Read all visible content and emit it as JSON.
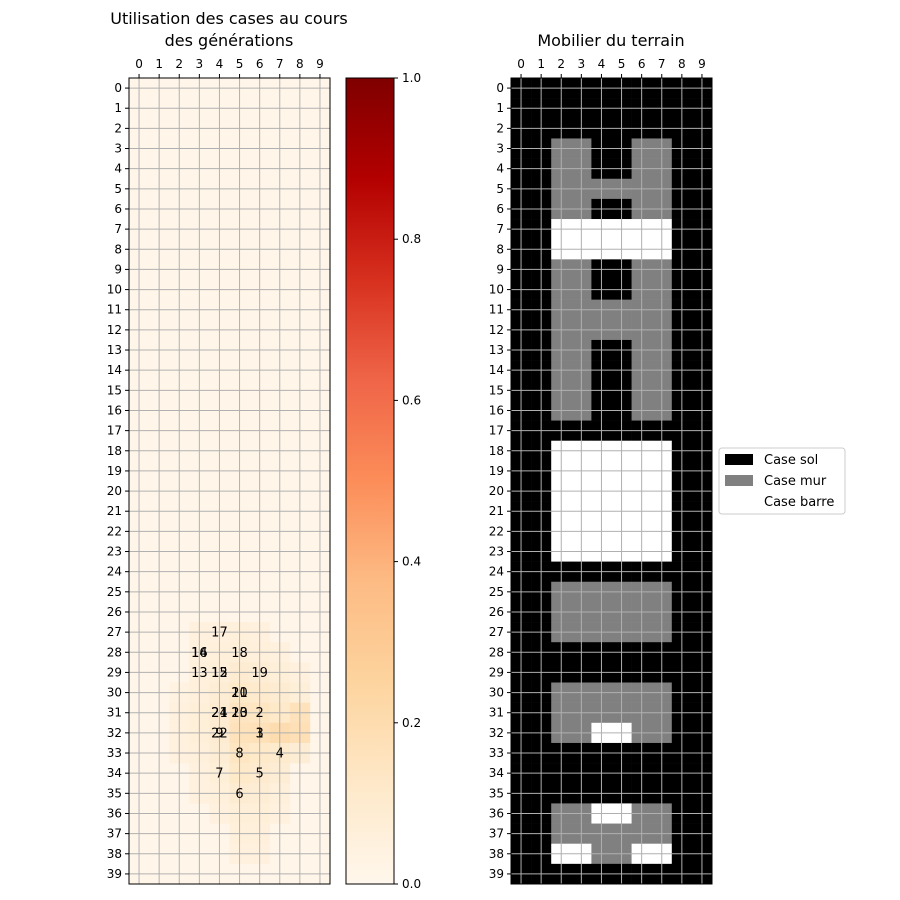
{
  "heatmap": {
    "title_line1": "Utilisation des cases au cours",
    "title_line2": "des générations",
    "cols": 10,
    "rows": 40,
    "x_ticks": [
      "0",
      "1",
      "2",
      "3",
      "4",
      "5",
      "6",
      "7",
      "8",
      "9"
    ],
    "colormap": "OrRd",
    "vmin": 0.0,
    "vmax": 1.0,
    "colorbar_ticks": [
      "0.0",
      "0.2",
      "0.4",
      "0.6",
      "0.8",
      "1.0"
    ],
    "cells": [
      {
        "row": 27,
        "col": 3,
        "v": 0.05
      },
      {
        "row": 27,
        "col": 4,
        "v": 0.05
      },
      {
        "row": 27,
        "col": 5,
        "v": 0.06
      },
      {
        "row": 27,
        "col": 6,
        "v": 0.05
      },
      {
        "row": 28,
        "col": 3,
        "v": 0.05
      },
      {
        "row": 28,
        "col": 4,
        "v": 0.06
      },
      {
        "row": 28,
        "col": 5,
        "v": 0.07
      },
      {
        "row": 28,
        "col": 6,
        "v": 0.06
      },
      {
        "row": 28,
        "col": 7,
        "v": 0.05
      },
      {
        "row": 29,
        "col": 3,
        "v": 0.06
      },
      {
        "row": 29,
        "col": 4,
        "v": 0.07
      },
      {
        "row": 29,
        "col": 5,
        "v": 0.09
      },
      {
        "row": 29,
        "col": 6,
        "v": 0.08
      },
      {
        "row": 29,
        "col": 7,
        "v": 0.07
      },
      {
        "row": 29,
        "col": 8,
        "v": 0.05
      },
      {
        "row": 30,
        "col": 2,
        "v": 0.04
      },
      {
        "row": 30,
        "col": 3,
        "v": 0.06
      },
      {
        "row": 30,
        "col": 4,
        "v": 0.08
      },
      {
        "row": 30,
        "col": 5,
        "v": 0.12
      },
      {
        "row": 30,
        "col": 6,
        "v": 0.11
      },
      {
        "row": 30,
        "col": 7,
        "v": 0.09
      },
      {
        "row": 30,
        "col": 8,
        "v": 0.07
      },
      {
        "row": 31,
        "col": 2,
        "v": 0.05
      },
      {
        "row": 31,
        "col": 3,
        "v": 0.07
      },
      {
        "row": 31,
        "col": 4,
        "v": 0.09
      },
      {
        "row": 31,
        "col": 5,
        "v": 0.15
      },
      {
        "row": 31,
        "col": 6,
        "v": 0.14
      },
      {
        "row": 31,
        "col": 7,
        "v": 0.12
      },
      {
        "row": 31,
        "col": 8,
        "v": 0.16
      },
      {
        "row": 32,
        "col": 2,
        "v": 0.05
      },
      {
        "row": 32,
        "col": 3,
        "v": 0.07
      },
      {
        "row": 32,
        "col": 4,
        "v": 0.09
      },
      {
        "row": 32,
        "col": 5,
        "v": 0.16
      },
      {
        "row": 32,
        "col": 6,
        "v": 0.17
      },
      {
        "row": 32,
        "col": 7,
        "v": 0.2
      },
      {
        "row": 32,
        "col": 8,
        "v": 0.18
      },
      {
        "row": 33,
        "col": 2,
        "v": 0.05
      },
      {
        "row": 33,
        "col": 3,
        "v": 0.06
      },
      {
        "row": 33,
        "col": 4,
        "v": 0.08
      },
      {
        "row": 33,
        "col": 5,
        "v": 0.14
      },
      {
        "row": 33,
        "col": 6,
        "v": 0.12
      },
      {
        "row": 33,
        "col": 7,
        "v": 0.11
      },
      {
        "row": 33,
        "col": 8,
        "v": 0.08
      },
      {
        "row": 34,
        "col": 3,
        "v": 0.05
      },
      {
        "row": 34,
        "col": 4,
        "v": 0.07
      },
      {
        "row": 34,
        "col": 5,
        "v": 0.12
      },
      {
        "row": 34,
        "col": 6,
        "v": 0.1
      },
      {
        "row": 34,
        "col": 7,
        "v": 0.08
      },
      {
        "row": 35,
        "col": 3,
        "v": 0.05
      },
      {
        "row": 35,
        "col": 4,
        "v": 0.06
      },
      {
        "row": 35,
        "col": 5,
        "v": 0.09
      },
      {
        "row": 35,
        "col": 6,
        "v": 0.08
      },
      {
        "row": 35,
        "col": 7,
        "v": 0.06
      },
      {
        "row": 36,
        "col": 4,
        "v": 0.05
      },
      {
        "row": 36,
        "col": 5,
        "v": 0.07
      },
      {
        "row": 36,
        "col": 6,
        "v": 0.07
      },
      {
        "row": 36,
        "col": 7,
        "v": 0.05
      },
      {
        "row": 37,
        "col": 5,
        "v": 0.06
      },
      {
        "row": 37,
        "col": 6,
        "v": 0.06
      },
      {
        "row": 38,
        "col": 5,
        "v": 0.05
      },
      {
        "row": 38,
        "col": 6,
        "v": 0.05
      }
    ],
    "labels": [
      {
        "text": "17",
        "row": 27,
        "col": 4
      },
      {
        "text": "16",
        "row": 28,
        "col": 3
      },
      {
        "text": "14",
        "row": 28,
        "col": 3
      },
      {
        "text": "18",
        "row": 28,
        "col": 5
      },
      {
        "text": "13",
        "row": 29,
        "col": 3
      },
      {
        "text": "15",
        "row": 29,
        "col": 4
      },
      {
        "text": "12",
        "row": 29,
        "col": 4
      },
      {
        "text": "19",
        "row": 29,
        "col": 6
      },
      {
        "text": "20",
        "row": 30,
        "col": 5
      },
      {
        "text": "11",
        "row": 30,
        "col": 5
      },
      {
        "text": "21",
        "row": 31,
        "col": 4
      },
      {
        "text": "24",
        "row": 31,
        "col": 4
      },
      {
        "text": "23",
        "row": 31,
        "col": 5
      },
      {
        "text": "10",
        "row": 31,
        "col": 5
      },
      {
        "text": "2",
        "row": 31,
        "col": 6
      },
      {
        "text": "22",
        "row": 32,
        "col": 4
      },
      {
        "text": "9",
        "row": 32,
        "col": 4
      },
      {
        "text": "3",
        "row": 32,
        "col": 6
      },
      {
        "text": "1",
        "row": 32,
        "col": 6
      },
      {
        "text": "8",
        "row": 33,
        "col": 5
      },
      {
        "text": "4",
        "row": 33,
        "col": 7
      },
      {
        "text": "7",
        "row": 34,
        "col": 4
      },
      {
        "text": "5",
        "row": 34,
        "col": 6
      },
      {
        "text": "6",
        "row": 35,
        "col": 5
      }
    ]
  },
  "terrain": {
    "title": "Mobilier du terrain",
    "cols": 10,
    "rows": 40,
    "x_ticks": [
      "0",
      "1",
      "2",
      "3",
      "4",
      "5",
      "6",
      "7",
      "8",
      "9"
    ],
    "colors": {
      "0": "#000000",
      "1": "#808080",
      "2": "#ffffff"
    },
    "grid": [
      [
        0,
        0,
        0,
        0,
        0,
        0,
        0,
        0,
        0,
        0
      ],
      [
        0,
        0,
        0,
        0,
        0,
        0,
        0,
        0,
        0,
        0
      ],
      [
        0,
        0,
        0,
        0,
        0,
        0,
        0,
        0,
        0,
        0
      ],
      [
        0,
        0,
        1,
        1,
        0,
        0,
        1,
        1,
        0,
        0
      ],
      [
        0,
        0,
        1,
        1,
        0,
        0,
        1,
        1,
        0,
        0
      ],
      [
        0,
        0,
        1,
        1,
        1,
        1,
        1,
        1,
        0,
        0
      ],
      [
        0,
        0,
        1,
        1,
        0,
        0,
        1,
        1,
        0,
        0
      ],
      [
        0,
        0,
        2,
        2,
        2,
        2,
        2,
        2,
        0,
        0
      ],
      [
        0,
        0,
        2,
        2,
        2,
        2,
        2,
        2,
        0,
        0
      ],
      [
        0,
        0,
        1,
        1,
        0,
        0,
        1,
        1,
        0,
        0
      ],
      [
        0,
        0,
        1,
        1,
        0,
        0,
        1,
        1,
        0,
        0
      ],
      [
        0,
        0,
        1,
        1,
        1,
        1,
        1,
        1,
        0,
        0
      ],
      [
        0,
        0,
        1,
        1,
        1,
        1,
        1,
        1,
        0,
        0
      ],
      [
        0,
        0,
        1,
        1,
        0,
        0,
        1,
        1,
        0,
        0
      ],
      [
        0,
        0,
        1,
        1,
        0,
        0,
        1,
        1,
        0,
        0
      ],
      [
        0,
        0,
        1,
        1,
        0,
        0,
        1,
        1,
        0,
        0
      ],
      [
        0,
        0,
        1,
        1,
        0,
        0,
        1,
        1,
        0,
        0
      ],
      [
        0,
        0,
        0,
        0,
        0,
        0,
        0,
        0,
        0,
        0
      ],
      [
        0,
        0,
        2,
        2,
        2,
        2,
        2,
        2,
        0,
        0
      ],
      [
        0,
        0,
        2,
        2,
        2,
        2,
        2,
        2,
        0,
        0
      ],
      [
        0,
        0,
        2,
        2,
        2,
        2,
        2,
        2,
        0,
        0
      ],
      [
        0,
        0,
        2,
        2,
        2,
        2,
        2,
        2,
        0,
        0
      ],
      [
        0,
        0,
        2,
        2,
        2,
        2,
        2,
        2,
        0,
        0
      ],
      [
        0,
        0,
        2,
        2,
        2,
        2,
        2,
        2,
        0,
        0
      ],
      [
        0,
        0,
        0,
        0,
        0,
        0,
        0,
        0,
        0,
        0
      ],
      [
        0,
        0,
        1,
        1,
        1,
        1,
        1,
        1,
        0,
        0
      ],
      [
        0,
        0,
        1,
        1,
        1,
        1,
        1,
        1,
        0,
        0
      ],
      [
        0,
        0,
        1,
        1,
        1,
        1,
        1,
        1,
        0,
        0
      ],
      [
        0,
        0,
        0,
        0,
        0,
        0,
        0,
        0,
        0,
        0
      ],
      [
        0,
        0,
        0,
        0,
        0,
        0,
        0,
        0,
        0,
        0
      ],
      [
        0,
        0,
        1,
        1,
        1,
        1,
        1,
        1,
        0,
        0
      ],
      [
        0,
        0,
        1,
        1,
        1,
        1,
        1,
        1,
        0,
        0
      ],
      [
        0,
        0,
        1,
        1,
        2,
        2,
        1,
        1,
        0,
        0
      ],
      [
        0,
        0,
        0,
        0,
        0,
        0,
        0,
        0,
        0,
        0
      ],
      [
        0,
        0,
        0,
        0,
        0,
        0,
        0,
        0,
        0,
        0
      ],
      [
        0,
        0,
        0,
        0,
        0,
        0,
        0,
        0,
        0,
        0
      ],
      [
        0,
        0,
        1,
        1,
        2,
        2,
        1,
        1,
        0,
        0
      ],
      [
        0,
        0,
        1,
        1,
        1,
        1,
        1,
        1,
        0,
        0
      ],
      [
        0,
        0,
        2,
        2,
        1,
        1,
        2,
        2,
        0,
        0
      ],
      [
        0,
        0,
        0,
        0,
        0,
        0,
        0,
        0,
        0,
        0
      ]
    ]
  },
  "legend": {
    "items": [
      {
        "label": "Case sol",
        "color": "#000000"
      },
      {
        "label": "Case mur",
        "color": "#808080"
      },
      {
        "label": "Case barre",
        "color": "#ffffff"
      }
    ]
  },
  "chart_data": [
    {
      "type": "heatmap",
      "title": "Utilisation des cases au cours des générations",
      "x": [
        0,
        1,
        2,
        3,
        4,
        5,
        6,
        7,
        8,
        9
      ],
      "y": "0–39",
      "colorbar": {
        "min": 0.0,
        "max": 1.0,
        "ticks": [
          0.0,
          0.2,
          0.4,
          0.6,
          0.8,
          1.0
        ]
      },
      "note_values": "Low intensities concentrated around rows 27–38, columns 3–8, peak ≈ 0.2 near row 32, col 7; generation labels 1–24 annotated on cells"
    },
    {
      "type": "heatmap",
      "title": "Mobilier du terrain",
      "categories": [
        "Case sol",
        "Case mur",
        "Case barre"
      ],
      "x": [
        0,
        1,
        2,
        3,
        4,
        5,
        6,
        7,
        8,
        9
      ],
      "y": "0–39"
    }
  ]
}
